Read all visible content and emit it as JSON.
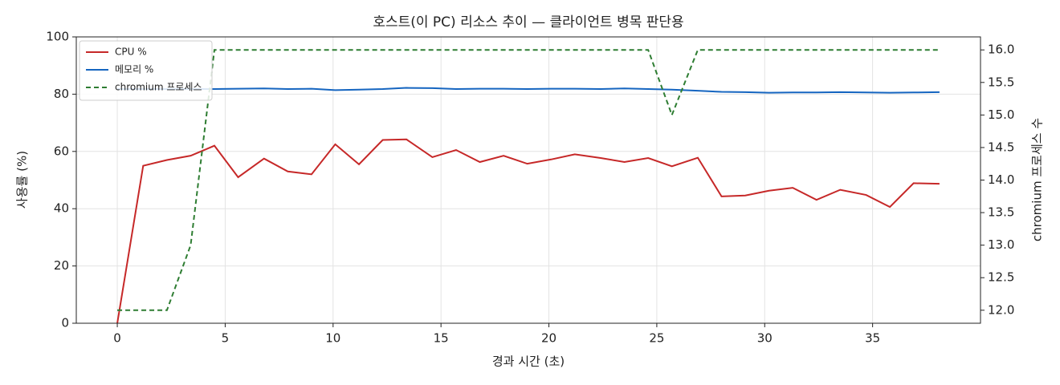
{
  "chart_data": {
    "type": "line",
    "title": "호스트(이 PC) 리소스 추이 — 클라이언트 병목 판단용",
    "x_label": "경과 시간 (초)",
    "y_label": "사용률 (%)",
    "y2_label": "chromium 프로세스 수",
    "x": [
      0,
      1.2,
      2.3,
      3.4,
      4.5,
      5.6,
      6.8,
      7.9,
      9.0,
      10.1,
      11.2,
      12.3,
      13.4,
      14.6,
      15.7,
      16.8,
      17.9,
      19.0,
      20.1,
      21.2,
      22.4,
      23.5,
      24.6,
      25.7,
      26.9,
      28.0,
      29.1,
      30.2,
      31.3,
      32.4,
      33.5,
      34.7,
      35.8,
      36.9,
      38.1
    ],
    "series": [
      {
        "name": "CPU %",
        "color": "#c62828",
        "linestyle": "solid",
        "values": [
          0,
          55,
          57,
          58.5,
          62,
          51,
          57.5,
          53,
          52,
          62.5,
          55.5,
          64,
          64.2,
          58,
          60.5,
          56.3,
          58.5,
          55.7,
          57.2,
          59,
          57.7,
          56.3,
          57.7,
          54.8,
          57.8,
          44.3,
          44.6,
          46.3,
          47.3,
          43.1,
          46.6,
          44.8,
          40.6,
          48.9,
          48.7
        ]
      },
      {
        "name": "메모리 %",
        "color": "#1565c0",
        "linestyle": "solid",
        "values": [
          81.8,
          81.8,
          81.8,
          81.8,
          81.8,
          81.9,
          82.0,
          81.8,
          81.9,
          81.4,
          81.6,
          81.8,
          82.2,
          82.1,
          81.8,
          81.9,
          81.9,
          81.8,
          81.9,
          81.9,
          81.8,
          82.0,
          81.8,
          81.6,
          81.2,
          80.8,
          80.7,
          80.5,
          80.6,
          80.6,
          80.7,
          80.6,
          80.5,
          80.6,
          80.7
        ]
      },
      {
        "name": "chromium 프로세스",
        "color": "#2e7d32",
        "linestyle": "dashed",
        "axis": "y2",
        "values": [
          12,
          12,
          12,
          13,
          16,
          16,
          16,
          16,
          16,
          16,
          16,
          16,
          16,
          16,
          16,
          16,
          16,
          16,
          16,
          16,
          16,
          16,
          16,
          15,
          16,
          16,
          16,
          16,
          16,
          16,
          16,
          16,
          16,
          16,
          16
        ]
      }
    ],
    "xlim": [
      -1.9,
      40.0
    ],
    "xticks": [
      0,
      5,
      10,
      15,
      20,
      25,
      30,
      35
    ],
    "ylim": [
      0,
      100
    ],
    "yticks": [
      0,
      20,
      40,
      60,
      80,
      100
    ],
    "y2lim": [
      11.8,
      16.2
    ],
    "y2ticks": [
      {
        "value": 12,
        "label": "12.0"
      },
      {
        "value": 12.5,
        "label": "12.5"
      },
      {
        "value": 13,
        "label": "13.0"
      },
      {
        "value": 13.5,
        "label": "13.5"
      },
      {
        "value": 14,
        "label": "14.0"
      },
      {
        "value": 14.5,
        "label": "14.5"
      },
      {
        "value": 15,
        "label": "15.0"
      },
      {
        "value": 15.5,
        "label": "15.5"
      },
      {
        "value": 16,
        "label": "16.0"
      }
    ],
    "grid": true,
    "legend": "upper left"
  }
}
